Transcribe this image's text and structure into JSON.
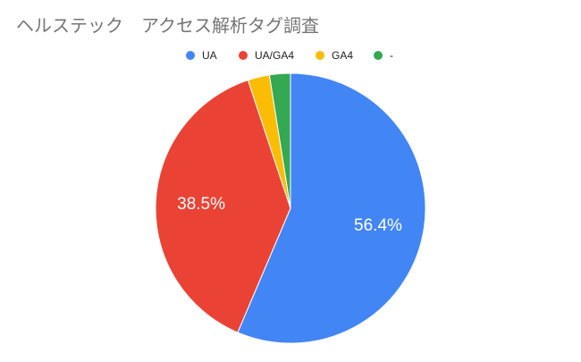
{
  "chart_data": {
    "type": "pie",
    "title": "ヘルステック　アクセス解析タグ調査",
    "categories": [
      "UA",
      "UA/GA4",
      "GA4",
      "-"
    ],
    "values": [
      56.4,
      38.5,
      2.6,
      2.5
    ],
    "value_labels": [
      "56.4%",
      "38.5%",
      null,
      null
    ],
    "colors": [
      "#4285f4",
      "#ea4335",
      "#fbbc04",
      "#34a853"
    ],
    "legend": "top"
  }
}
